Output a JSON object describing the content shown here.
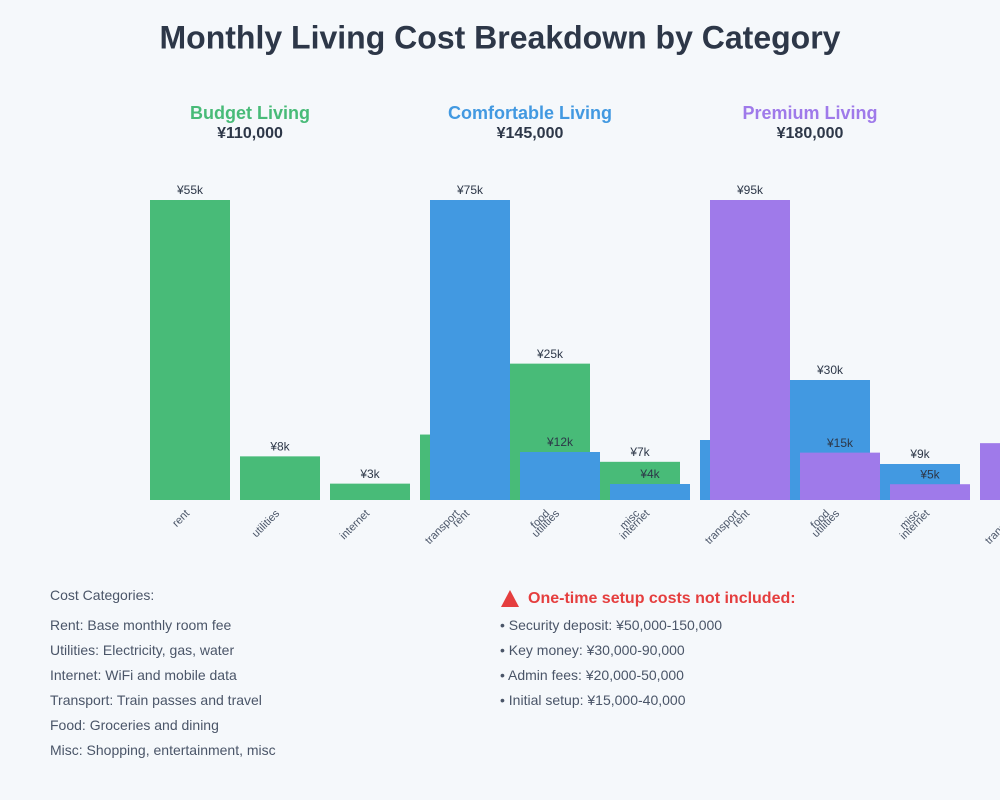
{
  "chart_data": {
    "type": "grouped-bar",
    "title": "Monthly Living Cost Breakdown by Category",
    "categories": [
      "rent",
      "utilities",
      "internet",
      "transport",
      "food",
      "misc"
    ],
    "series": [
      {
        "name": "Budget Living",
        "subtitle": "¥110,000",
        "color": "#48bb78",
        "values": [
          55000,
          8000,
          3000,
          12000,
          25000,
          7000
        ],
        "value_labels": [
          "¥55k",
          "¥8k",
          "¥3k",
          null,
          "¥25k",
          "¥7k"
        ]
      },
      {
        "name": "Comfortable Living",
        "subtitle": "¥145,000",
        "color": "#4299e1",
        "values": [
          75000,
          12000,
          4000,
          15000,
          30000,
          9000
        ],
        "value_labels": [
          "¥75k",
          "¥12k",
          "¥4k",
          null,
          "¥30k",
          "¥9k"
        ]
      },
      {
        "name": "Premium Living",
        "subtitle": "¥180,000",
        "color": "#9f7aea",
        "values": [
          95000,
          15000,
          5000,
          18000,
          null,
          null
        ],
        "value_labels": [
          "¥95k",
          "¥15k",
          "¥5k",
          null,
          null,
          null
        ]
      }
    ]
  },
  "notes": {
    "title": "Cost Categories:",
    "items": [
      "Rent: Base monthly room fee",
      "Utilities: Electricity, gas, water",
      "Internet: WiFi and mobile data",
      "Transport: Train passes and travel",
      "Food: Groceries and dining",
      "Misc: Shopping, entertainment, misc"
    ]
  },
  "warning": {
    "title": "One-time setup costs not included:",
    "items": [
      "• Security deposit: ¥50,000-150,000",
      "• Key money: ¥30,000-90,000",
      "• Admin fees: ¥20,000-50,000",
      "• Initial setup: ¥15,000-40,000"
    ]
  }
}
